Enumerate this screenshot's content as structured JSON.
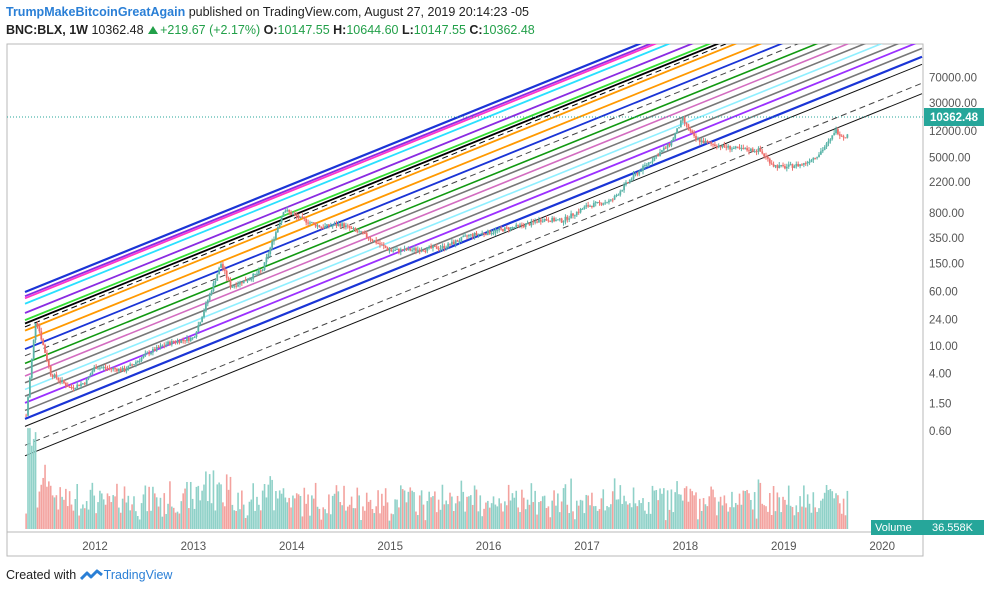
{
  "header": {
    "author": "TrumpMakeBitcoinGreatAgain",
    "published": "published on TradingView.com, August 27, 2019 20:14:23 -05",
    "symbol": "BNC:BLX, 1W",
    "last": "10362.48",
    "change": "+219.67 (+2.17%)",
    "o_label": "O:",
    "o_value": "10147.55",
    "h_label": "H:",
    "h_value": "10644.60",
    "l_label": "L:",
    "l_value": "10147.55",
    "c_label": "C:",
    "c_value": "10362.48"
  },
  "footer": {
    "created_with": "Created with",
    "brand": "TradingView"
  },
  "colors": {
    "up": "#5ab4a8",
    "down": "#ee6e6a",
    "vol_up": "#8fd1c8",
    "vol_down": "#f3a29e",
    "accent": "#26a69a",
    "link": "#2a7fd6"
  },
  "chart_data": {
    "type": "candlestick",
    "y_scale": "log",
    "price_labels": [
      "70000.00",
      "30000.00",
      "12000.00",
      "5000.00",
      "2200.00",
      "800.00",
      "350.00",
      "150.00",
      "60.00",
      "24.00",
      "10.00",
      "4.00",
      "1.50",
      "0.60"
    ],
    "x_labels": [
      "2012",
      "2013",
      "2014",
      "2015",
      "2016",
      "2017",
      "2018",
      "2019",
      "2020"
    ],
    "last_price_label": "10362.48",
    "volume_label": "Volume",
    "volume_value": "36.558K",
    "grid": false,
    "price_path": [
      [
        "2011.30",
        1.0
      ],
      [
        "2011.40",
        25
      ],
      [
        "2011.55",
        4
      ],
      [
        "2011.75",
        2.5
      ],
      [
        "2011.90",
        3
      ],
      [
        "2012.00",
        5
      ],
      [
        "2012.30",
        4.5
      ],
      [
        "2012.55",
        8
      ],
      [
        "2012.75",
        11
      ],
      [
        "2013.00",
        13
      ],
      [
        "2013.10",
        30
      ],
      [
        "2013.28",
        150
      ],
      [
        "2013.38",
        70
      ],
      [
        "2013.55",
        90
      ],
      [
        "2013.70",
        120
      ],
      [
        "2013.92",
        900
      ],
      [
        "2014.05",
        700
      ],
      [
        "2014.30",
        500
      ],
      [
        "2014.50",
        550
      ],
      [
        "2014.75",
        380
      ],
      [
        "2015.00",
        230
      ],
      [
        "2015.30",
        240
      ],
      [
        "2015.55",
        260
      ],
      [
        "2015.80",
        380
      ],
      [
        "2016.00",
        420
      ],
      [
        "2016.40",
        550
      ],
      [
        "2016.55",
        650
      ],
      [
        "2016.75",
        620
      ],
      [
        "2017.00",
        1000
      ],
      [
        "2017.25",
        1200
      ],
      [
        "2017.45",
        2500
      ],
      [
        "2017.65",
        4500
      ],
      [
        "2017.85",
        8000
      ],
      [
        "2017.97",
        17500
      ],
      [
        "2018.10",
        9000
      ],
      [
        "2018.30",
        7500
      ],
      [
        "2018.55",
        6500
      ],
      [
        "2018.75",
        6300
      ],
      [
        "2018.90",
        3800
      ],
      [
        "2019.00",
        3600
      ],
      [
        "2019.20",
        4000
      ],
      [
        "2019.35",
        5500
      ],
      [
        "2019.48",
        9000
      ],
      [
        "2019.52",
        12500
      ],
      [
        "2019.60",
        10000
      ],
      [
        "2019.66",
        10362.48
      ]
    ]
  }
}
